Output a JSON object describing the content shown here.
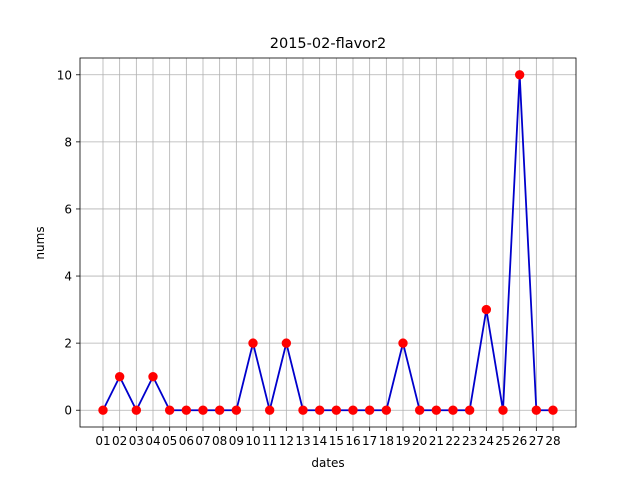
{
  "chart_data": {
    "type": "line",
    "title": "2015-02-flavor2",
    "xlabel": "dates",
    "ylabel": "nums",
    "categories": [
      "01",
      "02",
      "03",
      "04",
      "05",
      "06",
      "07",
      "08",
      "09",
      "10",
      "11",
      "12",
      "13",
      "14",
      "15",
      "16",
      "17",
      "18",
      "19",
      "20",
      "21",
      "22",
      "23",
      "24",
      "25",
      "26",
      "27",
      "28"
    ],
    "series": [
      {
        "values": [
          0,
          1,
          0,
          1,
          0,
          0,
          0,
          0,
          0,
          2,
          0,
          2,
          0,
          0,
          0,
          0,
          0,
          0,
          2,
          0,
          0,
          0,
          0,
          3,
          0,
          10,
          0,
          0
        ]
      }
    ],
    "ylim": [
      -0.5,
      10.5
    ],
    "yticks": [
      0,
      2,
      4,
      6,
      8,
      10
    ],
    "grid": true,
    "line_color": "#0000cc",
    "marker_color": "#ff0000"
  }
}
